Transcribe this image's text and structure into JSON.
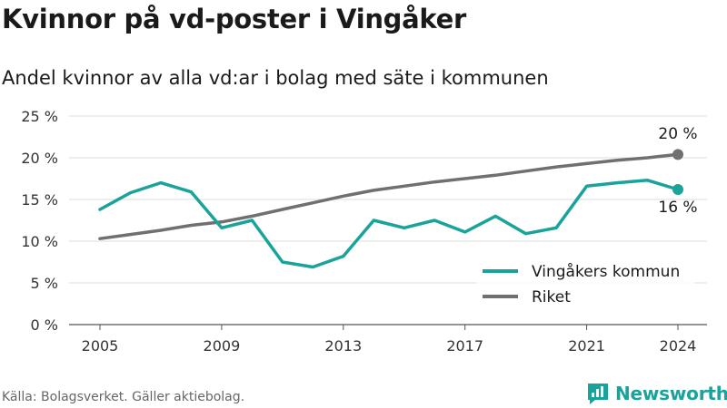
{
  "header": {
    "title": "Kvinnor på vd-poster i Vingåker",
    "subtitle": "Andel kvinnor av alla vd:ar i bolag med säte i kommunen"
  },
  "footer": {
    "source": "Källa: Bolagsverket. Gäller aktiebolag.",
    "brand": "Newsworthy"
  },
  "colors": {
    "vingaker": "#1aa39a",
    "riket": "#707070",
    "grid": "#dddddd",
    "brand": "#1aa39a"
  },
  "chart_data": {
    "type": "line",
    "title": "Kvinnor på vd-poster i Vingåker",
    "subtitle": "Andel kvinnor av alla vd:ar i bolag med säte i kommunen",
    "xlabel": "",
    "ylabel": "",
    "x": [
      2005,
      2006,
      2007,
      2008,
      2009,
      2010,
      2011,
      2012,
      2013,
      2014,
      2015,
      2016,
      2017,
      2018,
      2019,
      2020,
      2021,
      2022,
      2023,
      2024
    ],
    "x_ticks": [
      "2005",
      "2009",
      "2013",
      "2017",
      "2021",
      "2024"
    ],
    "y_ticks": [
      "0 %",
      "5 %",
      "10 %",
      "15 %",
      "20 %",
      "25 %"
    ],
    "ylim": [
      0,
      25
    ],
    "grid": true,
    "legend_position": "bottom-right",
    "series": [
      {
        "name": "Vingåkers kommun",
        "color": "#1aa39a",
        "values": [
          13.8,
          15.8,
          17.0,
          15.9,
          11.6,
          12.5,
          7.5,
          6.9,
          8.2,
          12.5,
          11.6,
          12.5,
          11.1,
          13.0,
          10.9,
          11.6,
          16.6,
          17.0,
          17.3,
          16.2
        ],
        "end_label": "16 %"
      },
      {
        "name": "Riket",
        "color": "#707070",
        "values": [
          10.3,
          10.8,
          11.3,
          11.9,
          12.3,
          13.0,
          13.8,
          14.6,
          15.4,
          16.1,
          16.6,
          17.1,
          17.5,
          17.9,
          18.4,
          18.9,
          19.3,
          19.7,
          20.0,
          20.4
        ],
        "end_label": "20 %"
      }
    ]
  }
}
